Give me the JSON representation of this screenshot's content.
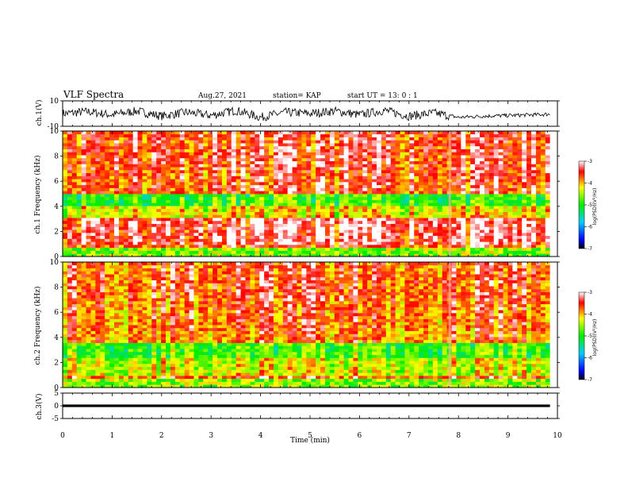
{
  "header": {
    "title": "VLF Spectra",
    "date": "Aug.27, 2021",
    "station": "station= KAP",
    "start": "start UT = 13: 0 : 1"
  },
  "chart_data": [
    {
      "type": "line",
      "panel": "ch1-waveform",
      "ylabel": "ch.1(V)",
      "ylim": [
        -10,
        10
      ],
      "ytick_labels": [
        "10",
        "-10"
      ],
      "xlim": [
        0,
        10
      ],
      "series": [
        {
          "color": "#000000",
          "x": [
            0,
            0.5,
            1.0,
            1.5,
            2.0,
            2.5,
            3.0,
            3.5,
            4.0,
            4.5,
            5.0,
            5.5,
            6.0,
            6.5,
            7.0,
            7.5,
            8.0,
            8.5,
            9.0,
            9.5,
            9.85
          ],
          "values": [
            0,
            1.5,
            -1,
            2,
            -2,
            1,
            -1.5,
            2.5,
            -3,
            1,
            0,
            2,
            -1,
            2.5,
            -2,
            0.5,
            -3,
            -2,
            -1.5,
            -1,
            -0.5
          ]
        }
      ]
    },
    {
      "type": "heatmap",
      "panel": "ch1-spectrogram",
      "ylabel": "ch.1 Frequency (kHz)",
      "ylim": [
        0,
        10
      ],
      "xlim": [
        0,
        10
      ],
      "ytick_labels": [
        "0",
        "2",
        "4",
        "6",
        "8",
        "10"
      ],
      "colorbar": {
        "label": "log(PSD)(V²/Hz)",
        "range": [
          -7,
          -3
        ],
        "ticks": [
          "-3",
          "-4",
          "-5",
          "-6",
          "-7"
        ]
      },
      "bands_khz": [
        [
          1.0,
          3.0,
          -3.3
        ],
        [
          3.0,
          4.0,
          -4.2
        ],
        [
          4.0,
          5.0,
          -4.9
        ],
        [
          5.0,
          7.0,
          -3.6
        ],
        [
          7.0,
          10.0,
          -3.5
        ]
      ]
    },
    {
      "type": "heatmap",
      "panel": "ch2-spectrogram",
      "ylabel": "ch.2 Frequency (kHz)",
      "ylim": [
        0,
        10
      ],
      "xlim": [
        0,
        10
      ],
      "ytick_labels": [
        "0",
        "2",
        "4",
        "6",
        "8",
        "10"
      ],
      "colorbar": {
        "label": "log(PSD)(V²/Hz)",
        "range": [
          -7,
          -3
        ],
        "ticks": [
          "-3",
          "-4",
          "-5",
          "-6",
          "-7"
        ]
      },
      "bands_khz": [
        [
          1.0,
          2.5,
          -4.3
        ],
        [
          2.5,
          3.5,
          -4.8
        ],
        [
          3.5,
          4.5,
          -3.8
        ],
        [
          4.5,
          7.0,
          -3.7
        ],
        [
          7.0,
          10.0,
          -3.6
        ]
      ]
    },
    {
      "type": "line",
      "panel": "ch3-waveform",
      "ylabel": "ch.3(V)",
      "ylim": [
        -5,
        5
      ],
      "ytick_labels": [
        "5",
        "0",
        "-5"
      ],
      "xlim": [
        0,
        10
      ],
      "xlabel": "Time (min)",
      "xtick_labels": [
        "0",
        "1",
        "2",
        "3",
        "4",
        "5",
        "6",
        "7",
        "8",
        "9",
        "10"
      ],
      "series": [
        {
          "color": "#000000",
          "x": [
            0,
            9.85
          ],
          "values": [
            0,
            0
          ],
          "amplitude": 0.5
        }
      ]
    }
  ]
}
